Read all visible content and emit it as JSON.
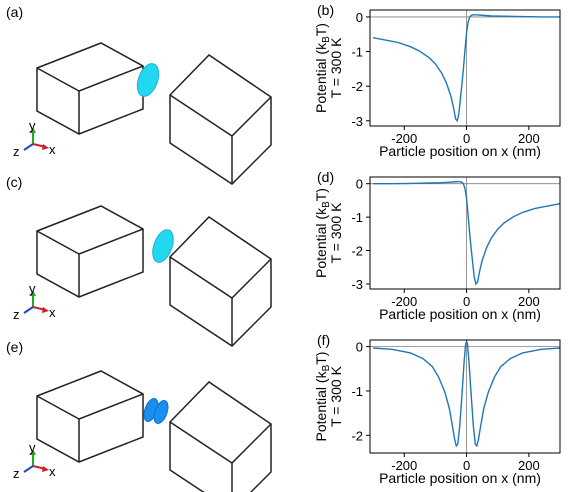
{
  "colors": {
    "curve": "#1f77b4",
    "particle": "#22d8f0",
    "particle_edge": "#13b5cf",
    "particle_pair": "#1a8ff0",
    "particle_pair_edge": "#0f6fd0",
    "box": "#222222",
    "axis_y": "#22aa22",
    "axis_x": "#cc2222",
    "axis_z": "#2244cc",
    "zero_line": "#808080"
  },
  "schematics": [
    {
      "panel_label": "(a)",
      "particle": "single-disk-right",
      "axes": {
        "y": "y",
        "x": "x",
        "z": "z"
      }
    },
    {
      "panel_label": "(c)",
      "particle": "single-disk-left",
      "axes": {
        "y": "y",
        "x": "x",
        "z": "z"
      }
    },
    {
      "panel_label": "(e)",
      "particle": "disk-pair-center",
      "axes": {
        "y": "y",
        "x": "x",
        "z": "z"
      }
    }
  ],
  "chart_data": [
    {
      "panel_label": "(b)",
      "type": "line",
      "xlabel": "Particle position on x (nm)",
      "ylabel_line1": "Potential (k",
      "ylabel_sub": "B",
      "ylabel_line1_end": "T)",
      "ylabel_line2": "T = 300 K",
      "xlim": [
        -310,
        300
      ],
      "ylim": [
        -3.15,
        0.2
      ],
      "xticks": [
        -200,
        0,
        200
      ],
      "xtick_labels": [
        "-200",
        "0",
        "200"
      ],
      "yticks": [
        0,
        -1,
        -2,
        -3
      ],
      "ytick_labels": [
        "0",
        "-1",
        "-2",
        "-3"
      ],
      "series": [
        {
          "x": [
            -300,
            -260,
            -220,
            -180,
            -150,
            -120,
            -100,
            -80,
            -65,
            -50,
            -42,
            -35,
            -30,
            -25,
            -20,
            -15,
            -10,
            -5,
            0,
            5,
            10,
            15,
            20,
            30,
            45,
            60,
            80,
            120,
            180,
            240,
            300
          ],
          "y": [
            -0.6,
            -0.67,
            -0.74,
            -0.86,
            -0.99,
            -1.18,
            -1.36,
            -1.62,
            -1.9,
            -2.3,
            -2.62,
            -2.95,
            -3.0,
            -2.8,
            -2.4,
            -1.95,
            -1.5,
            -0.95,
            -0.45,
            -0.15,
            0.0,
            0.04,
            0.06,
            0.06,
            0.05,
            0.04,
            0.03,
            0.02,
            0.01,
            0.0,
            0.0
          ]
        }
      ]
    },
    {
      "panel_label": "(d)",
      "type": "line",
      "xlabel": "Particle position on x (nm)",
      "ylabel_line1": "Potential (k",
      "ylabel_sub": "B",
      "ylabel_line1_end": "T)",
      "ylabel_line2": "T = 300 K",
      "xlim": [
        -310,
        300
      ],
      "ylim": [
        -3.15,
        0.2
      ],
      "xticks": [
        -200,
        0,
        200
      ],
      "xtick_labels": [
        "-200",
        "0",
        "200"
      ],
      "yticks": [
        0,
        -1,
        -2,
        -3
      ],
      "ytick_labels": [
        "0",
        "-1",
        "-2",
        "-3"
      ],
      "series": [
        {
          "x": [
            -300,
            -240,
            -180,
            -120,
            -80,
            -60,
            -45,
            -30,
            -20,
            -15,
            -10,
            -5,
            0,
            5,
            10,
            15,
            20,
            25,
            30,
            35,
            42,
            50,
            65,
            80,
            100,
            120,
            150,
            180,
            220,
            260,
            300
          ],
          "y": [
            0.0,
            0.0,
            0.01,
            0.02,
            0.03,
            0.04,
            0.05,
            0.06,
            0.06,
            0.04,
            0.0,
            -0.15,
            -0.45,
            -0.95,
            -1.5,
            -1.95,
            -2.4,
            -2.8,
            -3.0,
            -2.95,
            -2.62,
            -2.3,
            -1.9,
            -1.62,
            -1.36,
            -1.18,
            -0.99,
            -0.86,
            -0.74,
            -0.67,
            -0.6
          ]
        }
      ]
    },
    {
      "panel_label": "(f)",
      "type": "line",
      "xlabel": "Particle position on x (nm)",
      "ylabel_line1": "Potential (k",
      "ylabel_sub": "B",
      "ylabel_line1_end": "T)",
      "ylabel_line2": "T = 300 K",
      "xlim": [
        -310,
        300
      ],
      "ylim": [
        -2.4,
        0.15
      ],
      "xticks": [
        -200,
        0,
        200
      ],
      "xtick_labels": [
        "-200",
        "0",
        "200"
      ],
      "yticks": [
        0,
        -1,
        -2
      ],
      "ytick_labels": [
        "0",
        "-1",
        "-2"
      ],
      "series": [
        {
          "x": [
            -300,
            -240,
            -180,
            -140,
            -110,
            -90,
            -70,
            -55,
            -45,
            -38,
            -33,
            -28,
            -22,
            -15,
            -8,
            -3,
            0,
            3,
            8,
            15,
            22,
            28,
            33,
            38,
            45,
            55,
            70,
            90,
            110,
            140,
            180,
            240,
            300
          ],
          "y": [
            -0.03,
            -0.06,
            -0.14,
            -0.27,
            -0.45,
            -0.68,
            -1.02,
            -1.4,
            -1.8,
            -2.1,
            -2.24,
            -2.2,
            -1.8,
            -1.1,
            -0.35,
            0.05,
            0.12,
            0.05,
            -0.35,
            -1.1,
            -1.8,
            -2.2,
            -2.24,
            -2.1,
            -1.8,
            -1.4,
            -1.02,
            -0.68,
            -0.45,
            -0.27,
            -0.14,
            -0.06,
            -0.03
          ]
        }
      ]
    }
  ]
}
